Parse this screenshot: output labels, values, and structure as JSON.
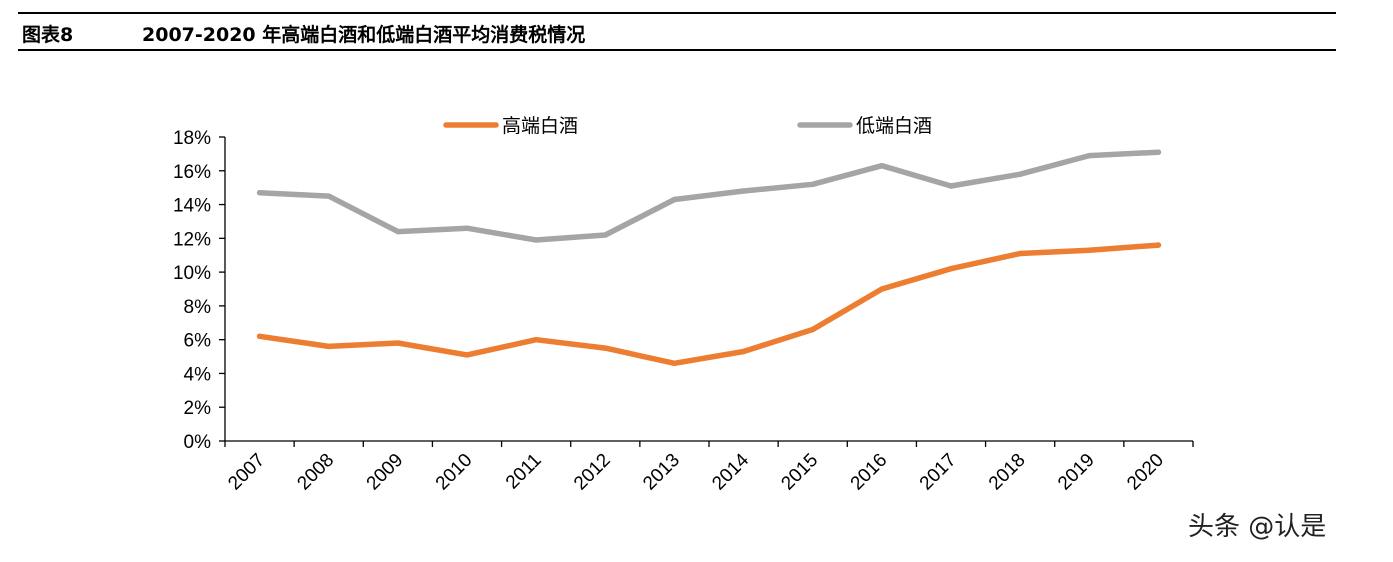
{
  "figure": {
    "label": "图表8",
    "title": "2007-2020 年高端白酒和低端白酒平均消费税情况"
  },
  "watermark": "头条 @认是",
  "colors": {
    "high_end": "#ED7D31",
    "low_end": "#A5A5A5",
    "axis": "#000000"
  },
  "chart_data": {
    "type": "line",
    "title": "",
    "xlabel": "",
    "ylabel": "",
    "categories": [
      "2007",
      "2008",
      "2009",
      "2010",
      "2011",
      "2012",
      "2013",
      "2014",
      "2015",
      "2016",
      "2017",
      "2018",
      "2019",
      "2020"
    ],
    "ylim": [
      0,
      18
    ],
    "yticks": [
      "0%",
      "2%",
      "4%",
      "6%",
      "8%",
      "10%",
      "12%",
      "14%",
      "16%",
      "18%"
    ],
    "y_unit": "%",
    "grid": false,
    "legend_position": "top",
    "series": [
      {
        "name": "高端白酒",
        "color": "#ED7D31",
        "values": [
          6.2,
          5.6,
          5.8,
          5.1,
          6.0,
          5.5,
          4.6,
          5.3,
          6.6,
          9.0,
          10.2,
          11.1,
          11.3,
          11.6
        ]
      },
      {
        "name": "低端白酒",
        "color": "#A5A5A5",
        "values": [
          14.7,
          14.5,
          12.4,
          12.6,
          11.9,
          12.2,
          14.3,
          14.8,
          15.2,
          16.3,
          15.1,
          15.8,
          16.9,
          17.1
        ]
      }
    ]
  }
}
